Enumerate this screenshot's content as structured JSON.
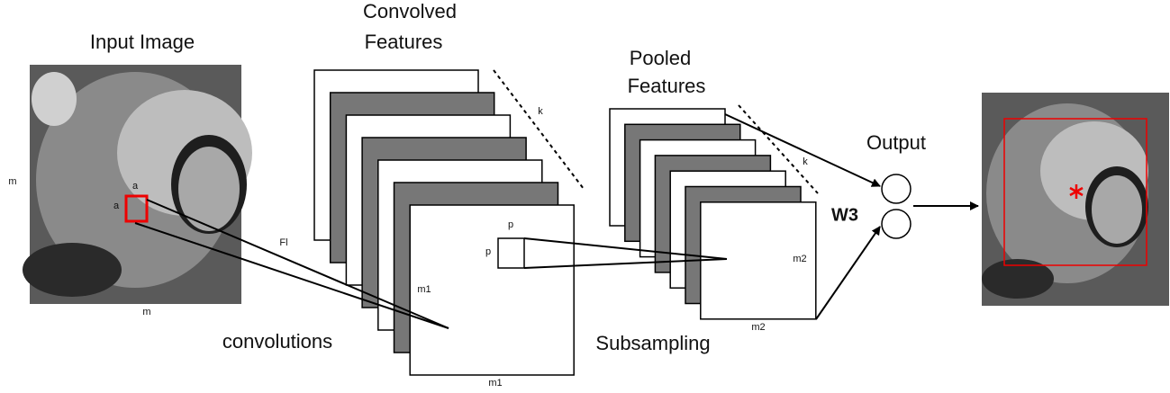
{
  "input": {
    "title": "Input Image",
    "side_label": "m",
    "bottom_label": "m",
    "patch_labels": [
      "a",
      "a"
    ]
  },
  "filter_label": "Fl",
  "convolved": {
    "title_lines": [
      "Convolved",
      "Features"
    ],
    "depth_label": "k",
    "side_label": "m1",
    "bottom_label": "m1",
    "caption": "convolutions",
    "patch_labels": [
      "p",
      "p"
    ]
  },
  "pooled": {
    "title_lines": [
      "Pooled",
      "Features"
    ],
    "depth_label": "k",
    "side_label": "m2",
    "bottom_label": "m2",
    "caption": "Subsampling"
  },
  "weights_label": "W3",
  "output": {
    "title": "Output"
  }
}
